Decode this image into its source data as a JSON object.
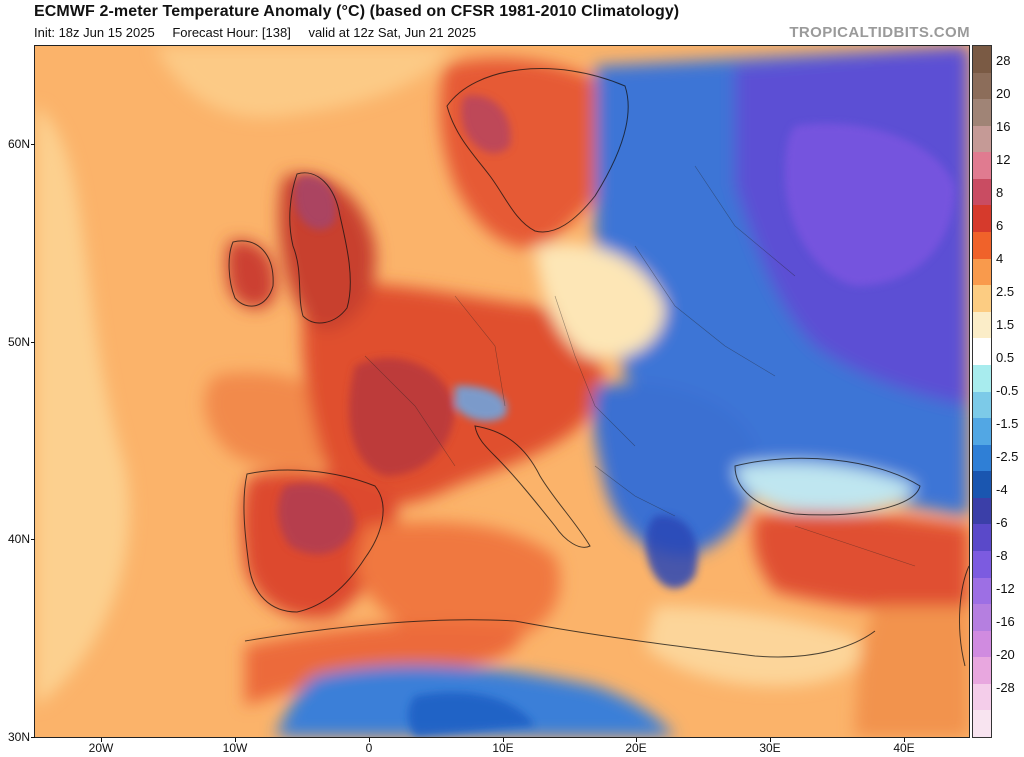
{
  "header": {
    "title": "ECMWF 2-meter Temperature Anomaly (°C) (based on CFSR 1981-2010 Climatology)",
    "init": "Init: 18z Jun 15 2025",
    "forecast_hour": "Forecast Hour: [138]",
    "valid": "valid at 12z Sat, Jun 21 2025",
    "brand": "TROPICALTIDBITS.COM"
  },
  "map": {
    "region": "Europe, North Africa and the Middle East",
    "lat_labels": [
      "60N",
      "50N",
      "40N",
      "30N"
    ],
    "lon_labels": [
      "20W",
      "10W",
      "0",
      "10E",
      "20E",
      "30E",
      "40E"
    ],
    "colors": {
      "ocean_warm": "#fbb36a",
      "strong_warm": "#e0502e",
      "very_warm": "#b83a4a",
      "cold": "#2f6fd1",
      "very_cold": "#6a4fd6"
    }
  },
  "colorbar": {
    "labels": [
      "28",
      "20",
      "16",
      "12",
      "8",
      "6",
      "4",
      "2.5",
      "1.5",
      "0.5",
      "-0.5",
      "-1.5",
      "-2.5",
      "-4",
      "-6",
      "-8",
      "-12",
      "-16",
      "-20",
      "-28"
    ],
    "colors": [
      "#7a5a44",
      "#8c6d5a",
      "#a08476",
      "#c59a96",
      "#e07b90",
      "#c94c62",
      "#d63a2c",
      "#f0622a",
      "#f99a4c",
      "#fccc82",
      "#fbedc8",
      "#ffffff",
      "#a8ecee",
      "#7ccae8",
      "#52a7e4",
      "#2f7fd6",
      "#1a56b0",
      "#3b3fa8",
      "#5a49c9",
      "#7c5be0",
      "#9d6fe4",
      "#b57fe0",
      "#d08be0",
      "#e8a7df",
      "#f4cdea",
      "#f8e4f0"
    ]
  }
}
